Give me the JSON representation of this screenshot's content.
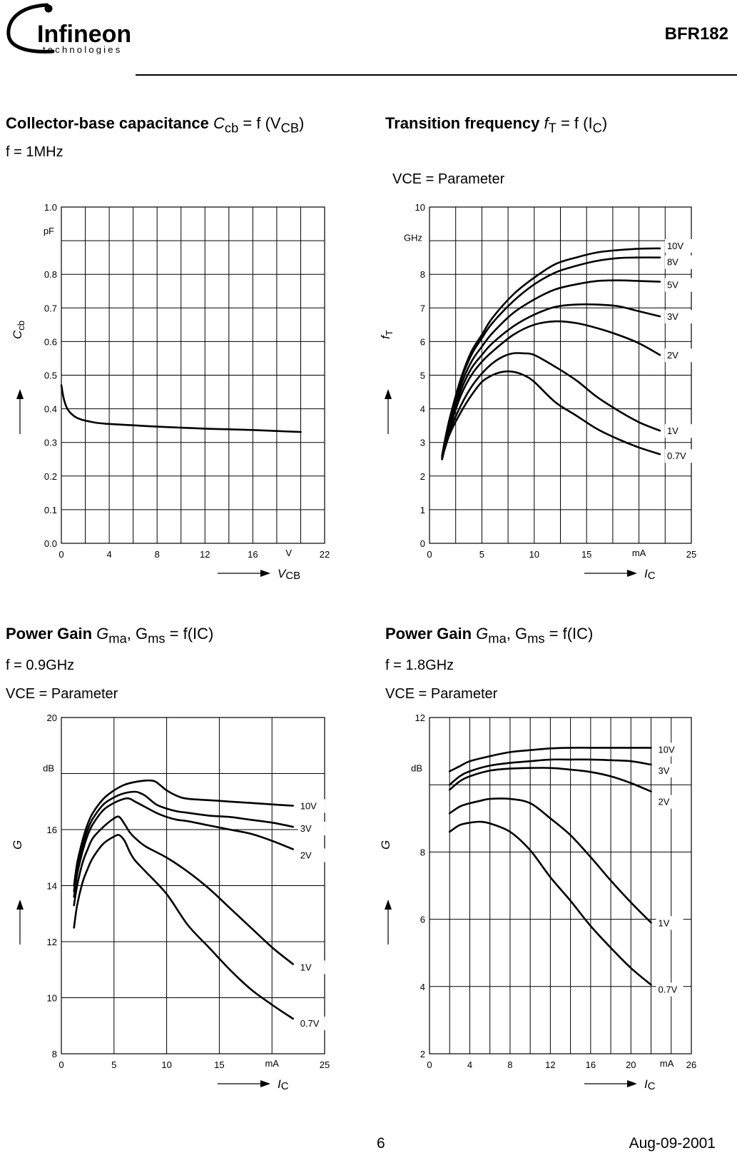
{
  "header": {
    "brand_name": "Infineon",
    "brand_sub": "technologies",
    "part_number": "BFR182"
  },
  "footer": {
    "page_number": "6",
    "date": "Aug-09-2001"
  },
  "panels": {
    "cap": {
      "title_bold": "Collector-base capacitance",
      "title_expr": "C",
      "title_expr_sub": "cb",
      "title_expr_rest": " = f (V",
      "title_expr_sub2": "CB",
      "title_expr_end": ")",
      "cond1": "f = 1MHz",
      "cond2": ""
    },
    "ft": {
      "title_bold": "Transition frequency",
      "title_expr": "f",
      "title_expr_sub": "T",
      "title_expr_rest": " = f (I",
      "title_expr_sub2": "C",
      "title_expr_end": ")",
      "cond1": "",
      "cond2": "VCE = Parameter"
    },
    "g09": {
      "title_bold": "Power Gain",
      "title_expr": "G",
      "title_expr_sub": "ma",
      "title_expr_rest": ", G",
      "title_expr_sub2": "ms",
      "title_expr_end": " = f(IC)",
      "cond1": "f = 0.9GHz",
      "cond2": "VCE = Parameter"
    },
    "g18": {
      "title_bold": "Power Gain",
      "title_expr": "G",
      "title_expr_sub": "ma",
      "title_expr_rest": ", G",
      "title_expr_sub2": "ms",
      "title_expr_end": " = f(IC)",
      "cond1": "f = 1.8GHz",
      "cond2": "VCE = Parameter"
    }
  },
  "chart_data": [
    {
      "id": "cap",
      "type": "line",
      "title": "Collector-base capacitance Ccb = f (VCB)",
      "xlabel": "VCB",
      "xunit": "V",
      "ylabel": "Ccb",
      "yunit": "pF",
      "xlim": [
        0,
        22
      ],
      "ylim": [
        0,
        1.0
      ],
      "xticks": [
        0,
        4,
        8,
        12,
        16,
        22
      ],
      "xtick_labels": [
        "0",
        "4",
        "8",
        "12",
        "16",
        "22"
      ],
      "yticks": [
        0,
        0.1,
        0.2,
        0.3,
        0.4,
        0.5,
        0.6,
        0.7,
        0.8,
        1.0
      ],
      "ytick_labels": [
        "0.0",
        "0.1",
        "0.2",
        "0.3",
        "0.4",
        "0.5",
        "0.6",
        "0.7",
        "0.8",
        "1.0"
      ],
      "xgrid": [
        2,
        4,
        6,
        8,
        10,
        12,
        14,
        16,
        18,
        20,
        22
      ],
      "ygrid": [
        0.1,
        0.2,
        0.3,
        0.4,
        0.5,
        0.6,
        0.7,
        0.8,
        0.9,
        1.0
      ],
      "series": [
        {
          "name": "Ccb",
          "label": "",
          "x": [
            0,
            0.2,
            0.5,
            1,
            1.5,
            2,
            3,
            4,
            6,
            8,
            10,
            12,
            14,
            16,
            18,
            20
          ],
          "y": [
            0.47,
            0.43,
            0.4,
            0.38,
            0.37,
            0.365,
            0.358,
            0.355,
            0.351,
            0.347,
            0.344,
            0.341,
            0.339,
            0.337,
            0.334,
            0.331
          ]
        }
      ]
    },
    {
      "id": "ft",
      "type": "line",
      "title": "Transition frequency fT = f (IC)",
      "xlabel": "IC",
      "xunit": "mA",
      "ylabel": "fT",
      "yunit": "GHz",
      "xlim": [
        0,
        25
      ],
      "ylim": [
        0,
        10
      ],
      "xticks": [
        0,
        5,
        10,
        15,
        25
      ],
      "xtick_labels": [
        "0",
        "5",
        "10",
        "15",
        "25"
      ],
      "yticks": [
        0,
        1,
        2,
        3,
        4,
        5,
        6,
        7,
        8,
        10
      ],
      "ytick_labels": [
        "0",
        "1",
        "2",
        "3",
        "4",
        "5",
        "6",
        "7",
        "8",
        "10"
      ],
      "xgrid": [
        2.5,
        5,
        7.5,
        10,
        12.5,
        15,
        17.5,
        20,
        22.5,
        25
      ],
      "ygrid": [
        1,
        2,
        3,
        4,
        5,
        6,
        7,
        8,
        9,
        10
      ],
      "series": [
        {
          "name": "10V",
          "label": "10V",
          "x": [
            1.2,
            1.5,
            2,
            3,
            4,
            5,
            6,
            8,
            10,
            12,
            14,
            16,
            18,
            20,
            22
          ],
          "y": [
            2.6,
            3.1,
            3.8,
            4.9,
            5.7,
            6.2,
            6.7,
            7.4,
            7.9,
            8.3,
            8.5,
            8.65,
            8.72,
            8.76,
            8.77
          ]
        },
        {
          "name": "8V",
          "label": "8V",
          "x": [
            1.2,
            1.5,
            2,
            3,
            4,
            5,
            6,
            8,
            10,
            12,
            14,
            16,
            18,
            20,
            22
          ],
          "y": [
            2.6,
            3.1,
            3.8,
            4.85,
            5.6,
            6.1,
            6.55,
            7.2,
            7.7,
            8.05,
            8.25,
            8.4,
            8.48,
            8.5,
            8.5
          ]
        },
        {
          "name": "5V",
          "label": "5V",
          "x": [
            1.2,
            1.5,
            2,
            3,
            4,
            5,
            6,
            8,
            10,
            12,
            14,
            16,
            18,
            20,
            22
          ],
          "y": [
            2.55,
            3.05,
            3.7,
            4.7,
            5.4,
            5.85,
            6.25,
            6.85,
            7.25,
            7.55,
            7.7,
            7.8,
            7.82,
            7.8,
            7.78
          ]
        },
        {
          "name": "3V",
          "label": "3V",
          "x": [
            1.2,
            1.5,
            2,
            3,
            4,
            5,
            6,
            8,
            10,
            12,
            14,
            16,
            18,
            20,
            22
          ],
          "y": [
            2.55,
            3.0,
            3.6,
            4.55,
            5.2,
            5.6,
            5.95,
            6.45,
            6.8,
            7.03,
            7.1,
            7.1,
            7.05,
            6.9,
            6.75
          ]
        },
        {
          "name": "2V",
          "label": "2V",
          "x": [
            1.2,
            1.5,
            2,
            3,
            4,
            5,
            6,
            8,
            10,
            12,
            14,
            16,
            18,
            20,
            22
          ],
          "y": [
            2.5,
            2.95,
            3.5,
            4.4,
            5.0,
            5.4,
            5.7,
            6.2,
            6.5,
            6.6,
            6.55,
            6.4,
            6.2,
            5.95,
            5.6
          ]
        },
        {
          "name": "1V",
          "label": "1V",
          "x": [
            1.2,
            1.5,
            2,
            3,
            4,
            5,
            6,
            7,
            8,
            9,
            10,
            12,
            14,
            16,
            18,
            20,
            22
          ],
          "y": [
            2.5,
            2.9,
            3.4,
            4.1,
            4.65,
            5.05,
            5.35,
            5.55,
            5.65,
            5.65,
            5.6,
            5.25,
            4.85,
            4.35,
            3.95,
            3.6,
            3.35
          ]
        },
        {
          "name": "0.7V",
          "label": "0.7V",
          "x": [
            1.2,
            1.5,
            2,
            3,
            4,
            5,
            6,
            7,
            8,
            9,
            10,
            12,
            14,
            16,
            18,
            20,
            22
          ],
          "y": [
            2.5,
            2.85,
            3.3,
            3.9,
            4.4,
            4.8,
            5.0,
            5.1,
            5.1,
            5.0,
            4.8,
            4.2,
            3.8,
            3.4,
            3.1,
            2.85,
            2.65
          ]
        }
      ]
    },
    {
      "id": "g09",
      "type": "line",
      "title": "Power Gain Gma, Gms = f(IC)",
      "xlabel": "IC",
      "xunit": "mA",
      "ylabel": "G",
      "yunit": "dB",
      "xlim": [
        0,
        25
      ],
      "ylim": [
        8,
        20
      ],
      "xticks": [
        0,
        5,
        10,
        15,
        25
      ],
      "xtick_labels": [
        "0",
        "5",
        "10",
        "15",
        "25"
      ],
      "yticks": [
        8,
        10,
        12,
        14,
        16,
        20
      ],
      "ytick_labels": [
        "8",
        "10",
        "12",
        "14",
        "16",
        "20"
      ],
      "xgrid": [
        5,
        10,
        15,
        20,
        25
      ],
      "ygrid": [
        10,
        12,
        14,
        16,
        18,
        20
      ],
      "series": [
        {
          "name": "10V",
          "label": "10V",
          "x": [
            1.2,
            1.5,
            2,
            2.5,
            3,
            4,
            5,
            6,
            7,
            8,
            8.5,
            9,
            10,
            11,
            12,
            14,
            16,
            18,
            20,
            22
          ],
          "y": [
            14.0,
            14.8,
            15.6,
            16.2,
            16.6,
            17.1,
            17.4,
            17.6,
            17.7,
            17.75,
            17.75,
            17.7,
            17.4,
            17.2,
            17.1,
            17.05,
            17.0,
            16.95,
            16.9,
            16.85
          ]
        },
        {
          "name": "3V",
          "label": "3V",
          "x": [
            1.2,
            1.5,
            2,
            2.5,
            3,
            4,
            5,
            6,
            7,
            7.5,
            8,
            9,
            10,
            11,
            12,
            14,
            16,
            18,
            20,
            22
          ],
          "y": [
            13.8,
            14.6,
            15.4,
            16.0,
            16.4,
            16.9,
            17.15,
            17.3,
            17.35,
            17.3,
            17.2,
            16.9,
            16.75,
            16.65,
            16.6,
            16.5,
            16.45,
            16.35,
            16.25,
            16.1
          ]
        },
        {
          "name": "2V",
          "label": "2V",
          "x": [
            1.2,
            1.5,
            2,
            2.5,
            3,
            4,
            5,
            6,
            6.5,
            7,
            8,
            9,
            10,
            11,
            12,
            14,
            16,
            18,
            20,
            22
          ],
          "y": [
            13.6,
            14.4,
            15.2,
            15.8,
            16.2,
            16.7,
            16.95,
            17.1,
            17.1,
            17.0,
            16.8,
            16.6,
            16.45,
            16.35,
            16.3,
            16.15,
            16.0,
            15.85,
            15.6,
            15.3
          ]
        },
        {
          "name": "1V",
          "label": "1V",
          "x": [
            1.2,
            1.5,
            2,
            2.5,
            3,
            4,
            5,
            5.5,
            6,
            6.5,
            7,
            8,
            10,
            12,
            14,
            16,
            18,
            20,
            22
          ],
          "y": [
            13.3,
            14.0,
            14.8,
            15.3,
            15.7,
            16.1,
            16.4,
            16.45,
            16.2,
            15.9,
            15.7,
            15.4,
            15.0,
            14.5,
            13.9,
            13.2,
            12.5,
            11.8,
            11.2
          ]
        },
        {
          "name": "0.7V",
          "label": "0.7V",
          "x": [
            1.2,
            1.5,
            2,
            2.5,
            3,
            4,
            5,
            5.5,
            6,
            6.5,
            7,
            8,
            10,
            12,
            14,
            16,
            18,
            20,
            22
          ],
          "y": [
            12.5,
            13.3,
            14.1,
            14.6,
            15.0,
            15.5,
            15.75,
            15.8,
            15.6,
            15.2,
            14.9,
            14.5,
            13.7,
            12.6,
            11.8,
            11.0,
            10.3,
            9.75,
            9.25
          ]
        }
      ]
    },
    {
      "id": "g18",
      "type": "line",
      "title": "Power Gain Gma, Gms = f(IC)",
      "xlabel": "IC",
      "xunit": "mA",
      "ylabel": "G",
      "yunit": "dB",
      "xlim": [
        0,
        26
      ],
      "ylim": [
        2,
        12
      ],
      "xticks": [
        0,
        4,
        8,
        12,
        16,
        20,
        26
      ],
      "xtick_labels": [
        "0",
        "4",
        "8",
        "12",
        "16",
        "20",
        "26"
      ],
      "yticks": [
        2,
        4,
        6,
        8,
        12
      ],
      "ytick_labels": [
        "2",
        "4",
        "6",
        "8",
        "12"
      ],
      "xgrid": [
        2,
        4,
        6,
        8,
        10,
        12,
        14,
        16,
        18,
        20,
        22,
        24,
        26
      ],
      "ygrid": [
        4,
        6,
        8,
        10,
        12
      ],
      "series": [
        {
          "name": "10V",
          "label": "10V",
          "x": [
            2,
            3,
            4,
            6,
            8,
            10,
            12,
            14,
            16,
            18,
            20,
            22
          ],
          "y": [
            10.4,
            10.55,
            10.7,
            10.85,
            10.97,
            11.03,
            11.08,
            11.1,
            11.1,
            11.1,
            11.1,
            11.1
          ]
        },
        {
          "name": "3V",
          "label": "3V",
          "x": [
            2,
            3,
            4,
            6,
            8,
            10,
            12,
            14,
            16,
            18,
            20,
            22
          ],
          "y": [
            10.0,
            10.25,
            10.4,
            10.57,
            10.65,
            10.7,
            10.75,
            10.75,
            10.75,
            10.73,
            10.7,
            10.6
          ]
        },
        {
          "name": "2V",
          "label": "2V",
          "x": [
            2,
            3,
            4,
            6,
            8,
            10,
            12,
            14,
            16,
            18,
            20,
            22
          ],
          "y": [
            9.85,
            10.1,
            10.25,
            10.42,
            10.48,
            10.5,
            10.5,
            10.45,
            10.38,
            10.25,
            10.05,
            9.8
          ]
        },
        {
          "name": "1V",
          "label": "1V",
          "x": [
            2,
            3,
            4,
            5,
            6,
            8,
            10,
            12,
            14,
            16,
            18,
            20,
            22
          ],
          "y": [
            9.15,
            9.35,
            9.45,
            9.52,
            9.58,
            9.58,
            9.45,
            9.0,
            8.5,
            7.85,
            7.15,
            6.5,
            5.9
          ]
        },
        {
          "name": "0.7V",
          "label": "0.7V",
          "x": [
            2,
            3,
            4,
            5,
            6,
            8,
            10,
            12,
            14,
            16,
            18,
            20,
            22
          ],
          "y": [
            8.6,
            8.8,
            8.87,
            8.9,
            8.85,
            8.6,
            8.05,
            7.25,
            6.55,
            5.8,
            5.15,
            4.55,
            4.05
          ]
        }
      ]
    }
  ]
}
